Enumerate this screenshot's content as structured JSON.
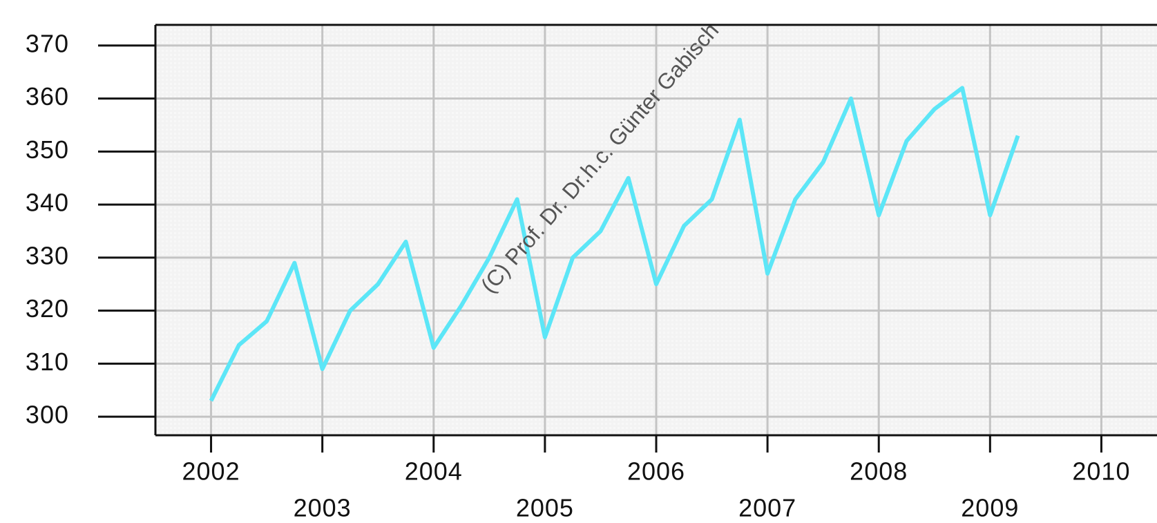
{
  "chart_data": {
    "type": "line",
    "watermark": "(C) Prof. Dr. Dr.h.c. Günter Gabisch",
    "x": [
      2002,
      2002.25,
      2002.5,
      2002.75,
      2003,
      2003.25,
      2003.5,
      2003.75,
      2004,
      2004.25,
      2004.5,
      2004.75,
      2005,
      2005.25,
      2005.5,
      2005.75,
      2006,
      2006.25,
      2006.5,
      2006.75,
      2007,
      2007.25,
      2007.5,
      2007.75,
      2008,
      2008.25,
      2008.5,
      2008.75,
      2009,
      2009.25
    ],
    "series": [
      {
        "color": "#5ce6f7",
        "values": [
          303,
          313.5,
          318,
          329,
          309,
          320,
          325,
          333,
          313,
          321,
          330,
          341,
          315,
          330,
          335,
          345,
          325,
          336,
          341,
          356,
          327,
          341,
          348,
          360,
          338,
          352,
          358,
          362,
          338,
          353
        ]
      }
    ],
    "xlim": [
      2001.5,
      2010.5
    ],
    "xticks": [
      2002,
      2003,
      2004,
      2005,
      2006,
      2007,
      2008,
      2009,
      2010
    ],
    "ylim": [
      296.5,
      373.9
    ],
    "yticks": [
      300,
      310,
      320,
      330,
      340,
      350,
      360,
      370
    ],
    "grid": true
  }
}
